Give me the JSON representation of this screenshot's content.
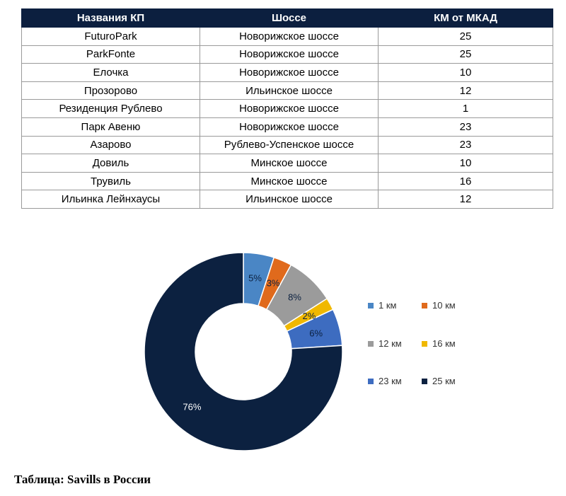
{
  "table": {
    "headers": [
      "Названия КП",
      "Шоссе",
      "КМ от МКАД"
    ],
    "rows": [
      [
        "FuturoPark",
        "Новорижское шоссе",
        "25"
      ],
      [
        "ParkFonte",
        "Новорижское шоссе",
        "25"
      ],
      [
        "Елочка",
        "Новорижское шоссе",
        "10"
      ],
      [
        "Прозорово",
        "Ильинское шоссе",
        "12"
      ],
      [
        "Резиденция Рублево",
        "Новорижское шоссе",
        "1"
      ],
      [
        "Парк Авеню",
        "Новорижское шоссе",
        "23"
      ],
      [
        "Азарово",
        "Рублево-Успенское шоссе",
        "23"
      ],
      [
        "Довиль",
        "Минское шоссе",
        "10"
      ],
      [
        "Трувиль",
        "Минское шоссе",
        "16"
      ],
      [
        "Ильинка Лейнхаусы",
        "Ильинское шоссе",
        "12"
      ]
    ]
  },
  "chart_data": {
    "type": "pie",
    "variant": "donut",
    "categories": [
      "1 км",
      "10 км",
      "12 км",
      "16 км",
      "23 км",
      "25 км"
    ],
    "values": [
      5,
      3,
      8,
      2,
      6,
      76
    ],
    "labels": [
      "5%",
      "3%",
      "8%",
      "2%",
      "6%",
      "76%"
    ],
    "colors": [
      "#4a86c5",
      "#e06a1c",
      "#9b9b9b",
      "#f0b800",
      "#3d6cc0",
      "#0c2140"
    ],
    "label_colors": [
      "#0c2140",
      "#0c2140",
      "#0c2140",
      "#0c2140",
      "#0c2140",
      "#ffffff"
    ],
    "legend_position": "right"
  },
  "caption": "Таблица: Savills в России"
}
